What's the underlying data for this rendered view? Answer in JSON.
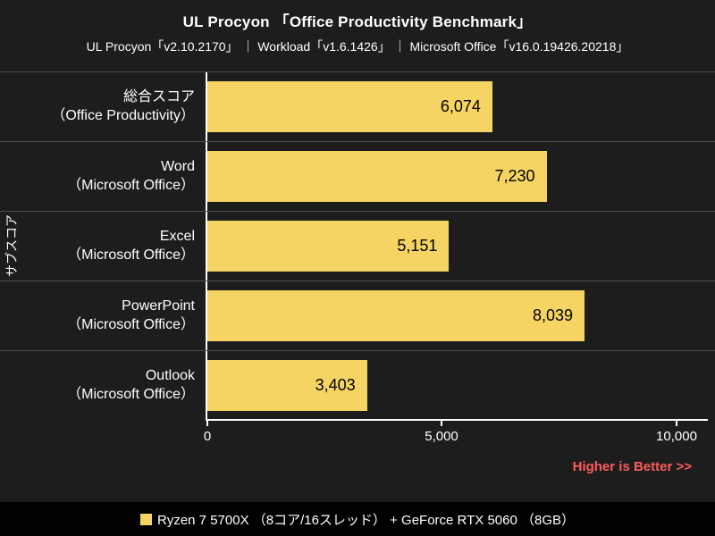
{
  "header": {
    "title": "UL Procyon 「Office Productivity Benchmark」",
    "subtitle": "UL Procyon「v2.10.2170」 ｜ Workload「v1.6.1426」 ｜ Microsoft Office「v16.0.19426.20218」"
  },
  "colors": {
    "bar": "#F5D463",
    "accent_red": "#FF5C5C",
    "background": "#1D1D1D",
    "legend_bg": "#000000",
    "grid_line": "#4D4D4D",
    "axis": "#FFFFFF"
  },
  "chart_data": {
    "type": "bar",
    "orientation": "horizontal",
    "title": "UL Procyon 「Office Productivity Benchmark」",
    "ylabel": "サブスコア",
    "xlim": [
      0,
      10000
    ],
    "x_ticks": [
      "0",
      "5,000",
      "10,000"
    ],
    "grid": false,
    "legend_position": "bottom",
    "categories": [
      "総合スコア（Office Productivity）",
      "Word（Microsoft Office）",
      "Excel（Microsoft Office）",
      "PowerPoint（Microsoft Office）",
      "Outlook（Microsoft Office）"
    ],
    "rows": [
      {
        "line1": "総合スコア",
        "line2": "（Office Productivity）",
        "value": 6074,
        "value_label": "6,074"
      },
      {
        "line1": "Word",
        "line2": "（Microsoft Office）",
        "value": 7230,
        "value_label": "7,230"
      },
      {
        "line1": "Excel",
        "line2": "（Microsoft Office）",
        "value": 5151,
        "value_label": "5,151"
      },
      {
        "line1": "PowerPoint",
        "line2": "（Microsoft Office）",
        "value": 8039,
        "value_label": "8,039"
      },
      {
        "line1": "Outlook",
        "line2": "（Microsoft Office）",
        "value": 3403,
        "value_label": "3,403"
      }
    ],
    "values": [
      6074,
      7230,
      5151,
      8039,
      3403
    ],
    "series": [
      {
        "name": "Ryzen 7 5700X （8コア/16スレッド） + GeForce RTX 5060 （8GB）",
        "values": [
          6074,
          7230,
          5151,
          8039,
          3403
        ]
      }
    ],
    "annotation": "Higher is Better >>"
  },
  "footer": {
    "note": "Higher is Better >>",
    "legend_label": "Ryzen 7 5700X （8コア/16スレッド） + GeForce RTX 5060 （8GB）"
  }
}
